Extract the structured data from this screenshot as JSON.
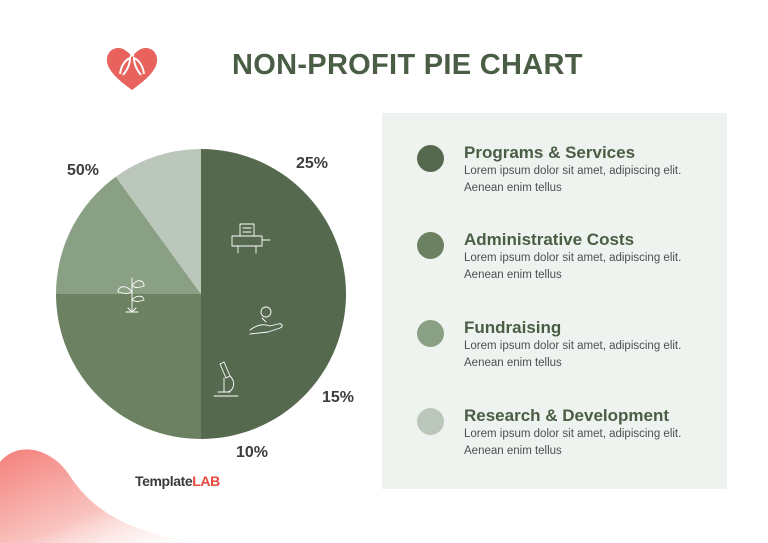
{
  "title": "NON-PROFIT PIE CHART",
  "brand": {
    "part1": "Template",
    "part2": "LAB"
  },
  "colors": {
    "accent": "#e8625e",
    "title": "#4a5d45",
    "panel": "#eff3ef"
  },
  "chart_data": {
    "type": "pie",
    "title": "NON-PROFIT PIE CHART",
    "slices": [
      {
        "name": "Programs & Services",
        "value": 50,
        "label": "50%",
        "color": "#55694f",
        "icon": "plant-icon"
      },
      {
        "name": "Administrative Costs",
        "value": 25,
        "label": "25%",
        "color": "#6b8162",
        "icon": "printer-icon"
      },
      {
        "name": "Fundraising",
        "value": 15,
        "label": "15%",
        "color": "#8aa084",
        "icon": "hand-coin-icon"
      },
      {
        "name": "Research & Development",
        "value": 10,
        "label": "10%",
        "color": "#bcc7bb",
        "icon": "microscope-icon"
      }
    ],
    "legend_placement": "right"
  },
  "legend": [
    {
      "title": "Programs & Services",
      "desc": "Lorem ipsum dolor sit amet, adipiscing elit. Aenean enim tellus"
    },
    {
      "title": "Administrative Costs",
      "desc": "Lorem ipsum dolor sit amet, adipiscing elit. Aenean enim tellus"
    },
    {
      "title": "Fundraising",
      "desc": "Lorem ipsum dolor sit amet, adipiscing elit. Aenean enim tellus"
    },
    {
      "title": "Research & Development",
      "desc": "Lorem ipsum dolor sit amet, adipiscing elit. Aenean enim tellus"
    }
  ]
}
